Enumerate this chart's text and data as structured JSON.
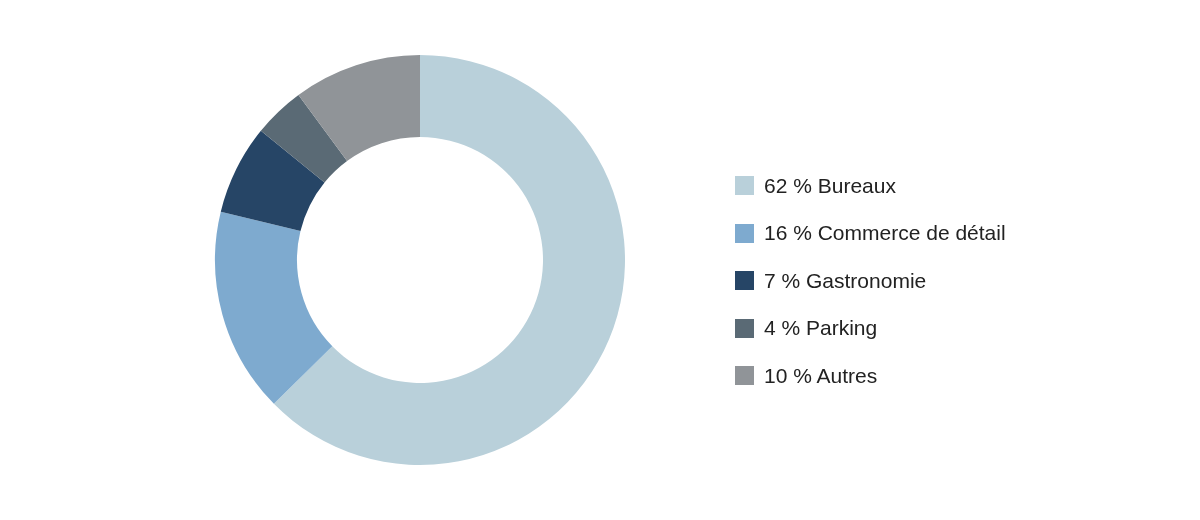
{
  "chart_data": {
    "type": "donut",
    "categories": [
      "Bureaux",
      "Commerce de détail",
      "Gastronomie",
      "Parking",
      "Autres"
    ],
    "values": [
      62,
      16,
      7,
      4,
      10
    ],
    "value_labels": [
      "62 %",
      "16 %",
      "7 %",
      "4 %",
      "10 %"
    ],
    "colors": [
      "#b9d0da",
      "#7eaacf",
      "#264566",
      "#5a6a75",
      "#909498"
    ],
    "legend": "right"
  }
}
